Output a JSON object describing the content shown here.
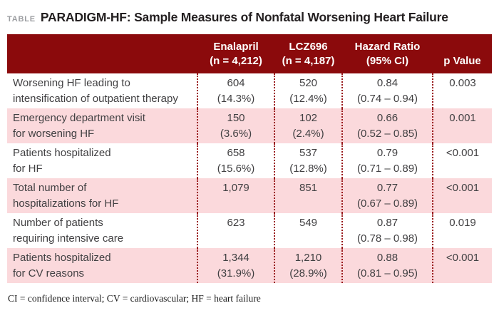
{
  "header": {
    "tag": "TABLE",
    "title": "PARADIGM-HF: Sample Measures of Nonfatal Worsening Heart Failure"
  },
  "table": {
    "col_headers": [
      {
        "lines": [
          "",
          ""
        ]
      },
      {
        "lines": [
          "Enalapril",
          "(n = 4,212)"
        ]
      },
      {
        "lines": [
          "LCZ696",
          "(n = 4,187)"
        ]
      },
      {
        "lines": [
          "Hazard Ratio",
          "(95% CI)"
        ]
      },
      {
        "lines": [
          "p Value"
        ]
      }
    ],
    "rows": [
      {
        "measure": [
          "Worsening HF leading to",
          "intensification of outpatient therapy"
        ],
        "enalapril": [
          "604",
          "(14.3%)"
        ],
        "lcz696": [
          "520",
          "(12.4%)"
        ],
        "hazard_ratio": [
          "0.84",
          "(0.74 – 0.94)"
        ],
        "p_value": "0.003"
      },
      {
        "measure": [
          "Emergency department visit",
          "for worsening HF"
        ],
        "enalapril": [
          "150",
          "(3.6%)"
        ],
        "lcz696": [
          "102",
          "(2.4%)"
        ],
        "hazard_ratio": [
          "0.66",
          "(0.52 – 0.85)"
        ],
        "p_value": "0.001"
      },
      {
        "measure": [
          "Patients hospitalized",
          "for HF"
        ],
        "enalapril": [
          "658",
          "(15.6%)"
        ],
        "lcz696": [
          "537",
          "(12.8%)"
        ],
        "hazard_ratio": [
          "0.79",
          "(0.71 – 0.89)"
        ],
        "p_value": "<0.001"
      },
      {
        "measure": [
          "Total number of",
          "hospitalizations for HF"
        ],
        "enalapril": [
          "1,079"
        ],
        "lcz696": [
          "851"
        ],
        "hazard_ratio": [
          "0.77",
          "(0.67 – 0.89)"
        ],
        "p_value": "<0.001"
      },
      {
        "measure": [
          "Number of patients",
          "requiring intensive care"
        ],
        "enalapril": [
          "623"
        ],
        "lcz696": [
          "549"
        ],
        "hazard_ratio": [
          "0.87",
          "(0.78 – 0.98)"
        ],
        "p_value": "0.019"
      },
      {
        "measure": [
          "Patients hospitalized",
          "for CV reasons"
        ],
        "enalapril": [
          "1,344",
          "(31.9%)"
        ],
        "lcz696": [
          "1,210",
          "(28.9%)"
        ],
        "hazard_ratio": [
          "0.88",
          "(0.81 – 0.95)"
        ],
        "p_value": "<0.001"
      }
    ]
  },
  "footnote": "CI = confidence interval; CV = cardiovascular; HF = heart failure",
  "colors": {
    "header_bg": "#8b0a0c",
    "row_pink": "#fbd9dc",
    "dotted_border": "#9a1b1d",
    "body_text": "#414042"
  }
}
